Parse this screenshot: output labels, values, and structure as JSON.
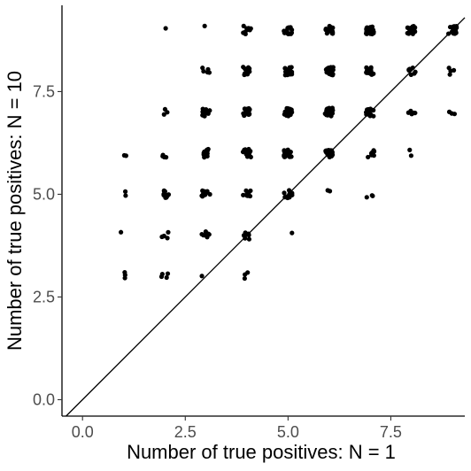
{
  "chart_data": {
    "type": "scatter",
    "title": "",
    "xlabel": "Number of true positives: N = 1",
    "ylabel": "Number of true positives: N = 10",
    "xlim": [
      -0.5,
      9.3
    ],
    "ylim": [
      -0.4,
      9.6
    ],
    "x_ticks": [
      0.0,
      2.5,
      5.0,
      7.5
    ],
    "x_tick_labels": [
      "0.0",
      "2.5",
      "5.0",
      "7.5"
    ],
    "y_ticks": [
      0.0,
      2.5,
      5.0,
      7.5
    ],
    "y_tick_labels": [
      "0.0",
      "2.5",
      "5.0",
      "7.5"
    ],
    "grid": false,
    "reference_line": {
      "slope": 1,
      "intercept": 0
    },
    "color": "#000000",
    "jitter": true,
    "points": [
      {
        "x": 1,
        "y": 3,
        "n": 3
      },
      {
        "x": 1,
        "y": 4,
        "n": 1
      },
      {
        "x": 1,
        "y": 5,
        "n": 2
      },
      {
        "x": 1,
        "y": 6,
        "n": 2
      },
      {
        "x": 2,
        "y": 3,
        "n": 4
      },
      {
        "x": 2,
        "y": 4,
        "n": 5
      },
      {
        "x": 2,
        "y": 5,
        "n": 12
      },
      {
        "x": 2,
        "y": 6,
        "n": 4
      },
      {
        "x": 2,
        "y": 7,
        "n": 3
      },
      {
        "x": 2,
        "y": 9,
        "n": 1
      },
      {
        "x": 3,
        "y": 3,
        "n": 1
      },
      {
        "x": 3,
        "y": 4,
        "n": 8
      },
      {
        "x": 3,
        "y": 5,
        "n": 12
      },
      {
        "x": 3,
        "y": 6,
        "n": 14
      },
      {
        "x": 3,
        "y": 7,
        "n": 10
      },
      {
        "x": 3,
        "y": 8,
        "n": 5
      },
      {
        "x": 3,
        "y": 9,
        "n": 1
      },
      {
        "x": 4,
        "y": 3,
        "n": 3
      },
      {
        "x": 4,
        "y": 4,
        "n": 7
      },
      {
        "x": 4,
        "y": 5,
        "n": 10
      },
      {
        "x": 4,
        "y": 6,
        "n": 12
      },
      {
        "x": 4,
        "y": 7,
        "n": 16
      },
      {
        "x": 4,
        "y": 8,
        "n": 14
      },
      {
        "x": 4,
        "y": 9,
        "n": 10
      },
      {
        "x": 5,
        "y": 4,
        "n": 1
      },
      {
        "x": 5,
        "y": 5,
        "n": 14
      },
      {
        "x": 5,
        "y": 6,
        "n": 24
      },
      {
        "x": 5,
        "y": 7,
        "n": 20
      },
      {
        "x": 5,
        "y": 8,
        "n": 20
      },
      {
        "x": 5,
        "y": 9,
        "n": 14
      },
      {
        "x": 6,
        "y": 5,
        "n": 2
      },
      {
        "x": 6,
        "y": 6,
        "n": 18
      },
      {
        "x": 6,
        "y": 7,
        "n": 22
      },
      {
        "x": 6,
        "y": 8,
        "n": 22
      },
      {
        "x": 6,
        "y": 9,
        "n": 18
      },
      {
        "x": 7,
        "y": 5,
        "n": 3
      },
      {
        "x": 7,
        "y": 6,
        "n": 8
      },
      {
        "x": 7,
        "y": 7,
        "n": 14
      },
      {
        "x": 7,
        "y": 8,
        "n": 16
      },
      {
        "x": 7,
        "y": 9,
        "n": 26
      },
      {
        "x": 8,
        "y": 6,
        "n": 2
      },
      {
        "x": 8,
        "y": 7,
        "n": 5
      },
      {
        "x": 8,
        "y": 8,
        "n": 9
      },
      {
        "x": 8,
        "y": 9,
        "n": 20
      },
      {
        "x": 9,
        "y": 7,
        "n": 3
      },
      {
        "x": 9,
        "y": 8,
        "n": 4
      },
      {
        "x": 9,
        "y": 9,
        "n": 16
      }
    ]
  }
}
